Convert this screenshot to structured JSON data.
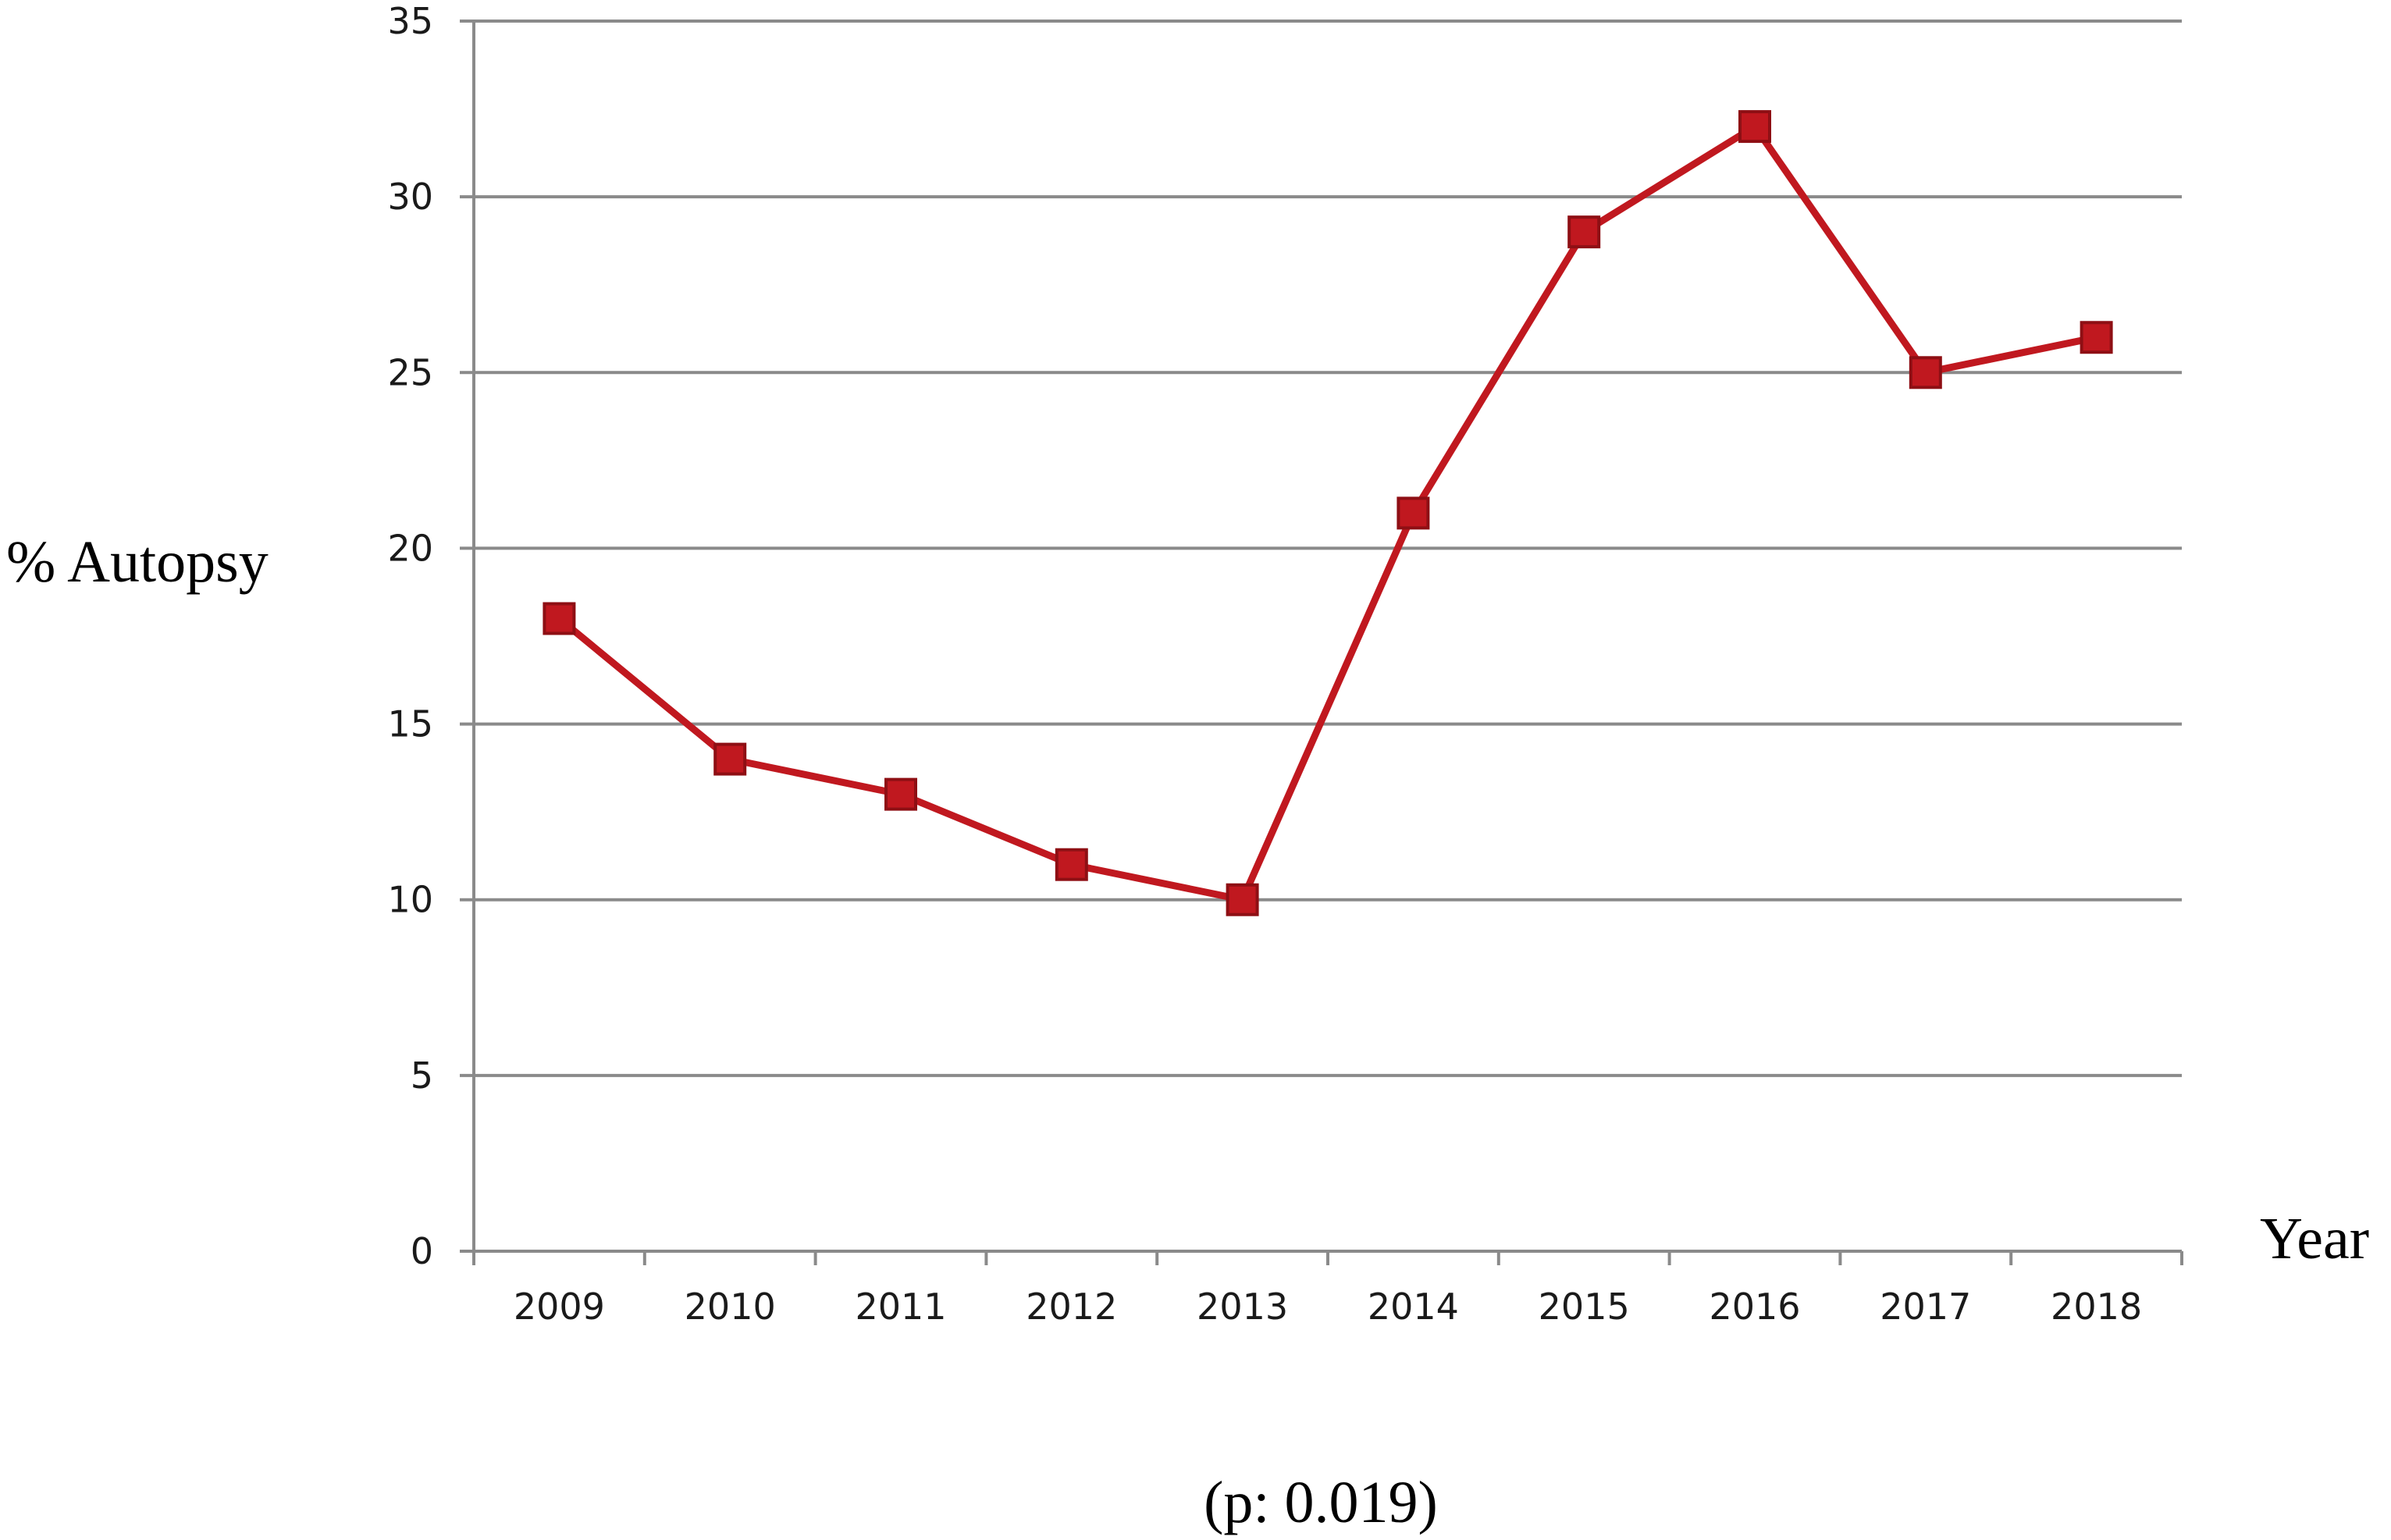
{
  "chart_data": {
    "type": "line",
    "title": "",
    "xlabel": "Year",
    "ylabel": "% Autopsy",
    "footnote": "(p: 0.019)",
    "categories": [
      "2009",
      "2010",
      "2011",
      "2012",
      "2013",
      "2014",
      "2015",
      "2016",
      "2017",
      "2018"
    ],
    "series": [
      {
        "values": [
          18,
          14,
          13,
          11,
          10,
          21,
          29,
          32,
          25,
          26
        ],
        "color": "#c0181f",
        "marker": "square"
      }
    ],
    "ylim": [
      0,
      35
    ],
    "yticks": [
      0,
      5,
      10,
      15,
      20,
      25,
      30,
      35
    ],
    "grid": true,
    "legend": "none"
  }
}
